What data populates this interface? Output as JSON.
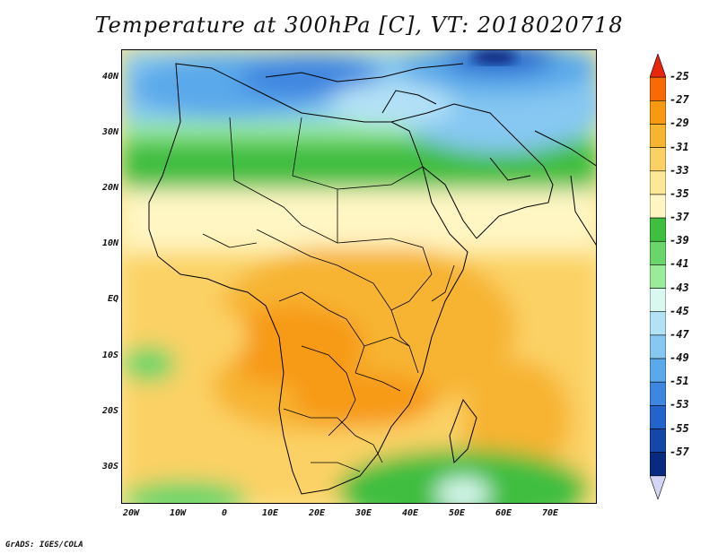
{
  "title": "Temperature at 300hPa [C], VT: 2018020718",
  "credit": "GrADS: IGES/COLA",
  "map": {
    "lat_labels": [
      "40N",
      "30N",
      "20N",
      "10N",
      "EQ",
      "10S",
      "20S",
      "30S"
    ],
    "lon_labels": [
      "20W",
      "10W",
      "0",
      "10E",
      "20E",
      "30E",
      "40E",
      "50E",
      "60E",
      "70E"
    ],
    "lat_range": [
      -37,
      45
    ],
    "lon_range": [
      -22,
      80
    ]
  },
  "colorbar": {
    "labels": [
      "-25",
      "-27",
      "-29",
      "-31",
      "-33",
      "-35",
      "-37",
      "-39",
      "-41",
      "-43",
      "-45",
      "-47",
      "-49",
      "-51",
      "-53",
      "-55",
      "-57"
    ],
    "colors": [
      "#e8250d",
      "#f76a06",
      "#f79a12",
      "#f7b431",
      "#fbd165",
      "#fde896",
      "#fff6c4",
      "#3fbe3f",
      "#6ad56a",
      "#9aeb9a",
      "#d8f8f0",
      "#b3e1f6",
      "#86c8f2",
      "#5aa9ea",
      "#3f86e0",
      "#2462cc",
      "#1447a8",
      "#0a2a80",
      "#d4d4f4"
    ]
  }
}
